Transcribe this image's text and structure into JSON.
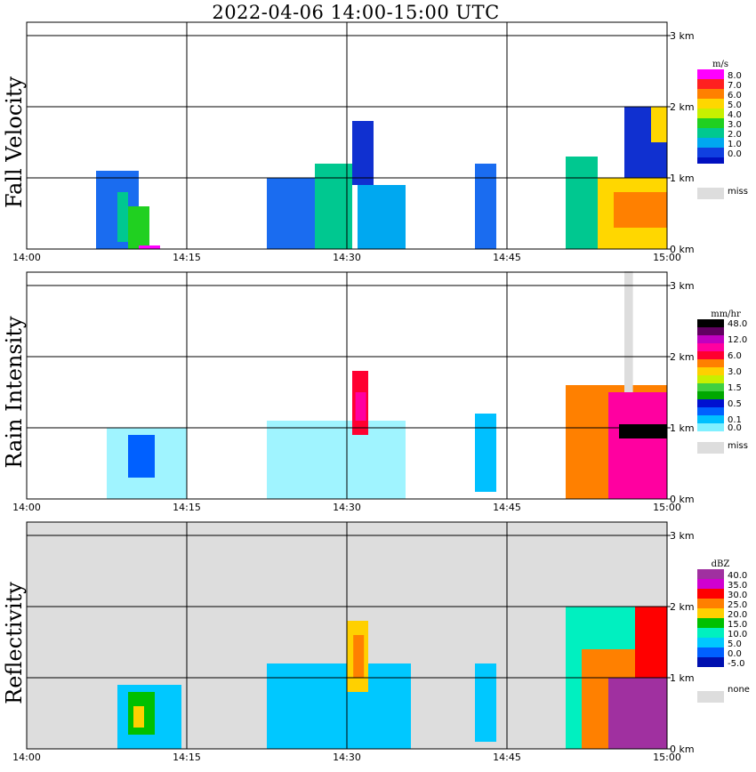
{
  "title": "2022-04-06  14:00-15:00 UTC",
  "chart_data": [
    {
      "type": "heatmap",
      "ylabel": "Fall Velocity",
      "unit": "m/s",
      "background": "#ffffff",
      "x_ticks": [
        "14:00",
        "14:15",
        "14:30",
        "14:45",
        "15:00"
      ],
      "y_ticks": [
        "0 km",
        "1 km",
        "2 km",
        "3 km"
      ],
      "grid": true,
      "legend": [
        {
          "label": "8.0",
          "color": "#ff00ff"
        },
        {
          "label": "7.0",
          "color": "#ff2020"
        },
        {
          "label": "6.0",
          "color": "#ff8000"
        },
        {
          "label": "5.0",
          "color": "#ffd700"
        },
        {
          "label": "4.0",
          "color": "#c8f000"
        },
        {
          "label": "3.0",
          "color": "#20d020"
        },
        {
          "label": "2.0",
          "color": "#00c890"
        },
        {
          "label": "1.0",
          "color": "#00a8f0"
        },
        {
          "label": "0.0",
          "color": "#1040e0"
        },
        {
          "label": "",
          "color": "#0010c0"
        }
      ],
      "missing": {
        "label": "miss",
        "color": "#dddddd"
      },
      "cells": [
        {
          "t0": 6.5,
          "t1": 10.5,
          "h0": 0.0,
          "h1": 1.1,
          "color": "#1a6cf0"
        },
        {
          "t0": 8.5,
          "t1": 9.5,
          "h0": 0.1,
          "h1": 0.8,
          "color": "#00c890"
        },
        {
          "t0": 9.5,
          "t1": 11.5,
          "h0": 0.0,
          "h1": 0.6,
          "color": "#20d020"
        },
        {
          "t0": 10.5,
          "t1": 12.5,
          "h0": 0.0,
          "h1": 0.05,
          "color": "#ff00ff"
        },
        {
          "t0": 22.5,
          "t1": 27.5,
          "h0": 0.0,
          "h1": 1.0,
          "color": "#1a6cf0"
        },
        {
          "t0": 27.0,
          "t1": 30.5,
          "h0": 0.0,
          "h1": 1.2,
          "color": "#00c890"
        },
        {
          "t0": 30.5,
          "t1": 32.5,
          "h0": 0.9,
          "h1": 1.8,
          "color": "#1030d0"
        },
        {
          "t0": 31.0,
          "t1": 35.5,
          "h0": 0.0,
          "h1": 0.9,
          "color": "#00a8f0"
        },
        {
          "t0": 42.0,
          "t1": 44.0,
          "h0": 0.0,
          "h1": 1.2,
          "color": "#1a6cf0"
        },
        {
          "t0": 50.5,
          "t1": 53.5,
          "h0": 0.0,
          "h1": 1.3,
          "color": "#00c890"
        },
        {
          "t0": 53.5,
          "t1": 60.0,
          "h0": 0.0,
          "h1": 1.0,
          "color": "#ffd700"
        },
        {
          "t0": 55.0,
          "t1": 60.0,
          "h0": 0.3,
          "h1": 0.8,
          "color": "#ff8000"
        },
        {
          "t0": 56.0,
          "t1": 60.0,
          "h0": 1.0,
          "h1": 2.0,
          "color": "#1030d0"
        },
        {
          "t0": 58.5,
          "t1": 60.0,
          "h0": 1.5,
          "h1": 2.0,
          "color": "#ffd700"
        }
      ]
    },
    {
      "type": "heatmap",
      "ylabel": "Rain Intensity",
      "unit": "mm/hr",
      "background": "#ffffff",
      "x_ticks": [
        "14:00",
        "14:15",
        "14:30",
        "14:45",
        "15:00"
      ],
      "y_ticks": [
        "0 km",
        "1 km",
        "2 km",
        "3 km"
      ],
      "grid": true,
      "legend": [
        {
          "label": "48.0",
          "color": "#000000"
        },
        {
          "label": "",
          "color": "#600060"
        },
        {
          "label": "12.0",
          "color": "#c000c0"
        },
        {
          "label": "",
          "color": "#ff00a0"
        },
        {
          "label": "6.0",
          "color": "#ff0030"
        },
        {
          "label": "",
          "color": "#ff8000"
        },
        {
          "label": "3.0",
          "color": "#ffd000"
        },
        {
          "label": "",
          "color": "#c8f000"
        },
        {
          "label": "1.5",
          "color": "#40d040"
        },
        {
          "label": "",
          "color": "#00a800"
        },
        {
          "label": "0.5",
          "color": "#0010d0"
        },
        {
          "label": "",
          "color": "#0060ff"
        },
        {
          "label": "0.1",
          "color": "#00c0ff"
        },
        {
          "label": "0.0",
          "color": "#80f0ff"
        }
      ],
      "missing": {
        "label": "miss",
        "color": "#dddddd"
      },
      "cells": [
        {
          "t0": 7.5,
          "t1": 15.0,
          "h0": 0.0,
          "h1": 1.0,
          "color": "#a0f4ff"
        },
        {
          "t0": 9.5,
          "t1": 12.0,
          "h0": 0.3,
          "h1": 0.9,
          "color": "#0060ff"
        },
        {
          "t0": 22.5,
          "t1": 35.5,
          "h0": 0.0,
          "h1": 1.1,
          "color": "#a0f4ff"
        },
        {
          "t0": 30.5,
          "t1": 32.0,
          "h0": 0.9,
          "h1": 1.8,
          "color": "#ff0030"
        },
        {
          "t0": 30.8,
          "t1": 31.8,
          "h0": 1.1,
          "h1": 1.5,
          "color": "#ff00a0"
        },
        {
          "t0": 42.0,
          "t1": 44.0,
          "h0": 0.1,
          "h1": 1.2,
          "color": "#00c0ff"
        },
        {
          "t0": 50.5,
          "t1": 60.0,
          "h0": 0.0,
          "h1": 1.6,
          "color": "#ff8000"
        },
        {
          "t0": 54.5,
          "t1": 60.0,
          "h0": 0.0,
          "h1": 1.5,
          "color": "#ff00a0"
        },
        {
          "t0": 55.5,
          "t1": 60.0,
          "h0": 0.85,
          "h1": 1.05,
          "color": "#000000"
        },
        {
          "t0": 56.0,
          "t1": 56.8,
          "h0": 1.5,
          "h1": 3.2,
          "color": "#dddddd"
        }
      ]
    },
    {
      "type": "heatmap",
      "ylabel": "Reflectivity",
      "unit": "dBZ",
      "background": "#dddddd",
      "x_ticks": [
        "14:00",
        "14:15",
        "14:30",
        "14:45",
        "15:00"
      ],
      "y_ticks": [
        "0 km",
        "1 km",
        "2 km",
        "3 km"
      ],
      "grid": true,
      "legend": [
        {
          "label": "40.0",
          "color": "#a030a0"
        },
        {
          "label": "35.0",
          "color": "#d000d0"
        },
        {
          "label": "30.0",
          "color": "#ff0000"
        },
        {
          "label": "25.0",
          "color": "#ff8000"
        },
        {
          "label": "20.0",
          "color": "#ffd000"
        },
        {
          "label": "15.0",
          "color": "#00c000"
        },
        {
          "label": "10.0",
          "color": "#00f0c0"
        },
        {
          "label": "5.0",
          "color": "#00c8ff"
        },
        {
          "label": "0.0",
          "color": "#0060ff"
        },
        {
          "label": "-5.0",
          "color": "#0010b0"
        }
      ],
      "missing": {
        "label": "none",
        "color": "#dddddd"
      },
      "cells": [
        {
          "t0": 8.5,
          "t1": 14.5,
          "h0": 0.0,
          "h1": 0.9,
          "color": "#00c8ff"
        },
        {
          "t0": 9.5,
          "t1": 12.0,
          "h0": 0.2,
          "h1": 0.8,
          "color": "#00c000"
        },
        {
          "t0": 10.0,
          "t1": 11.0,
          "h0": 0.3,
          "h1": 0.6,
          "color": "#ffd000"
        },
        {
          "t0": 22.5,
          "t1": 36.0,
          "h0": 0.0,
          "h1": 1.2,
          "color": "#00c8ff"
        },
        {
          "t0": 30.0,
          "t1": 32.0,
          "h0": 0.8,
          "h1": 1.8,
          "color": "#ffd000"
        },
        {
          "t0": 30.6,
          "t1": 31.6,
          "h0": 1.0,
          "h1": 1.6,
          "color": "#ff8000"
        },
        {
          "t0": 42.0,
          "t1": 44.0,
          "h0": 0.1,
          "h1": 1.2,
          "color": "#00c8ff"
        },
        {
          "t0": 50.5,
          "t1": 60.0,
          "h0": 0.0,
          "h1": 2.0,
          "color": "#00f0c0"
        },
        {
          "t0": 52.0,
          "t1": 60.0,
          "h0": 0.0,
          "h1": 1.4,
          "color": "#ff8000"
        },
        {
          "t0": 54.5,
          "t1": 60.0,
          "h0": 0.0,
          "h1": 1.0,
          "color": "#a030a0"
        },
        {
          "t0": 57.0,
          "t1": 60.0,
          "h0": 1.0,
          "h1": 2.0,
          "color": "#ff0000"
        }
      ]
    }
  ]
}
